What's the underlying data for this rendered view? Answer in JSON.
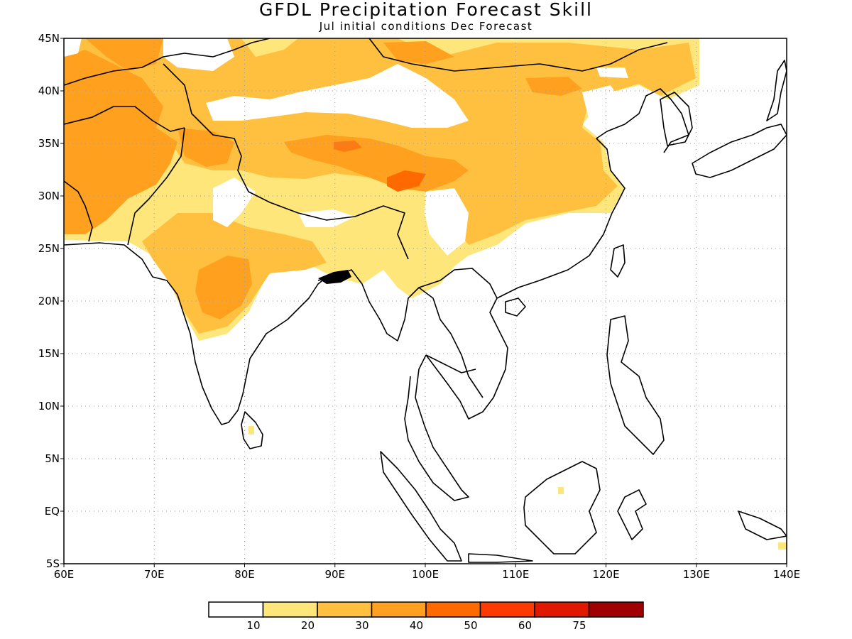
{
  "title": "GFDL Precipitation Forecast Skill",
  "subtitle": "Jul initial conditions  Dec Forecast",
  "map": {
    "lon_range": [
      60,
      140
    ],
    "lat_range": [
      -5,
      45
    ],
    "grid": "dotted",
    "x_ticks": [
      "60E",
      "70E",
      "80E",
      "90E",
      "100E",
      "110E",
      "120E",
      "130E",
      "140E"
    ],
    "y_ticks": [
      "5S",
      "EQ",
      "5N",
      "10N",
      "15N",
      "20N",
      "25N",
      "30N",
      "35N",
      "40N",
      "45N"
    ]
  },
  "legend": {
    "bins": [
      {
        "color": "#ffffff"
      },
      {
        "color": "#ffe67a"
      },
      {
        "color": "#ffc040"
      },
      {
        "color": "#ffa01e"
      },
      {
        "color": "#ff6a00"
      },
      {
        "color": "#ff3a00"
      },
      {
        "color": "#e01800"
      },
      {
        "color": "#a00000"
      }
    ],
    "labels": [
      "10",
      "20",
      "30",
      "40",
      "50",
      "60",
      "75"
    ]
  },
  "colors": {
    "light_yellow": "#ffe67a",
    "yellow_orange": "#ffc040",
    "orange": "#ffa01e",
    "dark_orange": "#ff6a00"
  }
}
